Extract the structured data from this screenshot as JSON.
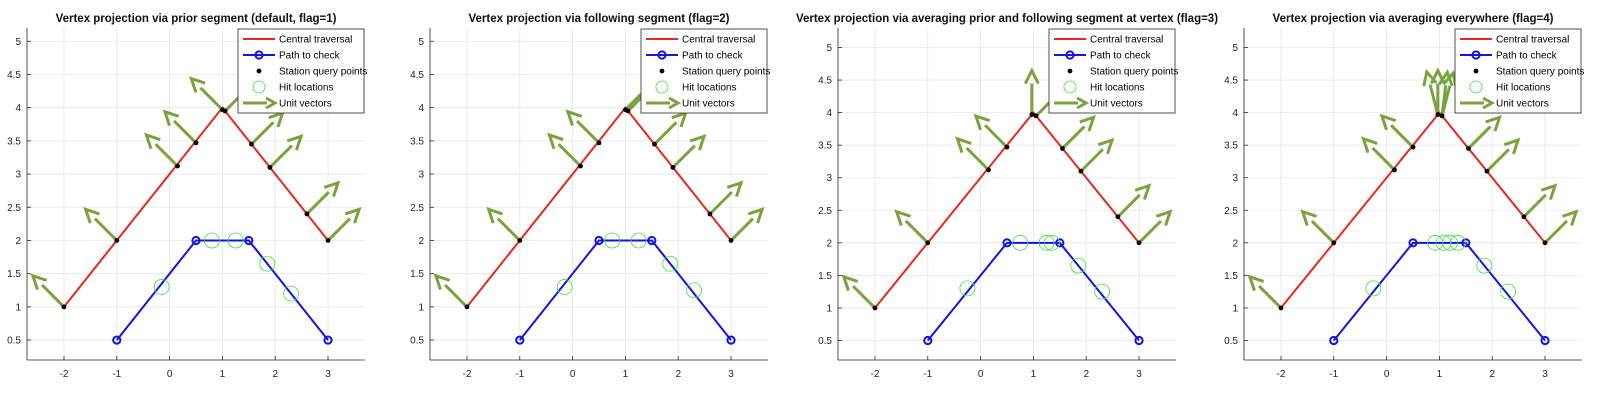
{
  "colors": {
    "central": "#e8281e",
    "path": "#1414dc",
    "vectors": "#7aa33f",
    "hits": "#3fe03f",
    "points": "#000000",
    "grid": "#e6e6e6",
    "axis": "#262626"
  },
  "legend": {
    "placement": "top-right",
    "items": [
      {
        "label": "Central traversal",
        "marker": "red-line"
      },
      {
        "label": "Path to check",
        "marker": "blue-line-circle"
      },
      {
        "label": "Station query points",
        "marker": "black-dot"
      },
      {
        "label": "Hit locations",
        "marker": "green-circle"
      },
      {
        "label": "Unit vectors",
        "marker": "green-arrow"
      }
    ]
  },
  "chart_data": [
    {
      "type": "line",
      "title": "Vertex projection via prior segment (default, flag=1)",
      "xlim": [
        -2.7,
        3.7
      ],
      "ylim": [
        0.2,
        5.2
      ],
      "xticks": [
        -2,
        -1,
        0,
        1,
        2,
        3
      ],
      "yticks": [
        0.5,
        1,
        1.5,
        2,
        2.5,
        3,
        3.5,
        4,
        4.5,
        5
      ],
      "grid": true,
      "series": [
        {
          "name": "Central traversal",
          "x": [
            -2,
            1,
            3
          ],
          "y": [
            1,
            4,
            2
          ]
        },
        {
          "name": "Path to check",
          "x": [
            -1,
            0.5,
            1.5,
            3
          ],
          "y": [
            0.5,
            2,
            2,
            0.5
          ]
        }
      ],
      "stations": {
        "x": [
          -2,
          -1.0,
          0.15,
          0.5,
          1.0,
          1.05,
          1.55,
          1.9,
          2.6,
          3
        ],
        "y": [
          1,
          2.0,
          3.12,
          3.47,
          3.97,
          3.95,
          3.45,
          3.1,
          2.4,
          2
        ]
      },
      "vectors": {
        "x": [
          -2,
          -1.0,
          0.15,
          0.5,
          1.0,
          1.05,
          1.55,
          1.9,
          2.6,
          3
        ],
        "y": [
          1,
          2.0,
          3.12,
          3.47,
          3.97,
          3.95,
          3.45,
          3.1,
          2.4,
          2
        ],
        "u": [
          -0.707,
          -0.707,
          -0.707,
          -0.707,
          -0.707,
          0.707,
          0.707,
          0.707,
          0.707,
          0.707
        ],
        "v": [
          0.707,
          0.707,
          0.707,
          0.707,
          0.707,
          0.707,
          0.707,
          0.707,
          0.707,
          0.707
        ]
      },
      "hits": {
        "x": [
          -0.15,
          0.8,
          1.25,
          1.85,
          2.3
        ],
        "y": [
          1.3,
          2.0,
          2.0,
          1.65,
          1.2
        ]
      }
    },
    {
      "type": "line",
      "title": "Vertex projection via following segment (flag=2)",
      "xlim": [
        -2.7,
        3.7
      ],
      "ylim": [
        0.2,
        5.2
      ],
      "xticks": [
        -2,
        -1,
        0,
        1,
        2,
        3
      ],
      "yticks": [
        0.5,
        1,
        1.5,
        2,
        2.5,
        3,
        3.5,
        4,
        4.5,
        5
      ],
      "grid": true,
      "series": [
        {
          "name": "Central traversal",
          "x": [
            -2,
            1,
            3
          ],
          "y": [
            1,
            4,
            2
          ]
        },
        {
          "name": "Path to check",
          "x": [
            -1,
            0.5,
            1.5,
            3
          ],
          "y": [
            0.5,
            2,
            2,
            0.5
          ]
        }
      ],
      "stations": {
        "x": [
          -2,
          -1.0,
          0.15,
          0.5,
          1.0,
          1.05,
          1.55,
          1.9,
          2.6,
          3
        ],
        "y": [
          1,
          2.0,
          3.12,
          3.47,
          3.97,
          3.95,
          3.45,
          3.1,
          2.4,
          2
        ]
      },
      "vectors": {
        "x": [
          -2,
          -1.0,
          0.15,
          0.5,
          1.0,
          1.05,
          1.55,
          1.9,
          2.6,
          3
        ],
        "y": [
          1,
          2.0,
          3.12,
          3.47,
          3.97,
          3.95,
          3.45,
          3.1,
          2.4,
          2
        ],
        "u": [
          -0.707,
          -0.707,
          -0.707,
          -0.707,
          0.707,
          0.707,
          0.707,
          0.707,
          0.707,
          0.707
        ],
        "v": [
          0.707,
          0.707,
          0.707,
          0.707,
          0.707,
          0.707,
          0.707,
          0.707,
          0.707,
          0.707
        ]
      },
      "hits": {
        "x": [
          -0.15,
          0.75,
          1.25,
          1.85,
          2.3
        ],
        "y": [
          1.3,
          2.0,
          2.0,
          1.65,
          1.25
        ]
      }
    },
    {
      "type": "line",
      "title": "Vertex projection via averaging prior and following segment at vertex (flag=3)",
      "xlim": [
        -2.7,
        3.7
      ],
      "ylim": [
        0.2,
        5.3
      ],
      "xticks": [
        -2,
        -1,
        0,
        1,
        2,
        3
      ],
      "yticks": [
        0.5,
        1,
        1.5,
        2,
        2.5,
        3,
        3.5,
        4,
        4.5,
        5
      ],
      "grid": true,
      "series": [
        {
          "name": "Central traversal",
          "x": [
            -2,
            1,
            3
          ],
          "y": [
            1,
            4,
            2
          ]
        },
        {
          "name": "Path to check",
          "x": [
            -1,
            0.5,
            1.5,
            3
          ],
          "y": [
            0.5,
            2,
            2,
            0.5
          ]
        }
      ],
      "stations": {
        "x": [
          -2,
          -1.0,
          0.15,
          0.5,
          0.97,
          1.05,
          1.55,
          1.9,
          2.6,
          3
        ],
        "y": [
          1,
          2.0,
          3.12,
          3.47,
          3.97,
          3.95,
          3.45,
          3.1,
          2.4,
          2
        ]
      },
      "vectors": {
        "x": [
          -2,
          -1.0,
          0.15,
          0.5,
          0.97,
          1.05,
          1.55,
          1.9,
          2.6,
          3
        ],
        "y": [
          1,
          2.0,
          3.12,
          3.47,
          3.97,
          3.95,
          3.45,
          3.1,
          2.4,
          2
        ],
        "u": [
          -0.707,
          -0.707,
          -0.707,
          -0.707,
          0.0,
          0.707,
          0.707,
          0.707,
          0.707,
          0.707
        ],
        "v": [
          0.707,
          0.707,
          0.707,
          0.707,
          1.0,
          0.707,
          0.707,
          0.707,
          0.707,
          0.707
        ]
      },
      "hits": {
        "x": [
          -0.25,
          0.75,
          1.25,
          1.35,
          1.85,
          2.3
        ],
        "y": [
          1.3,
          2.0,
          2.0,
          2.0,
          1.65,
          1.25
        ]
      }
    },
    {
      "type": "line",
      "title": "Vertex projection via averaging everywhere (flag=4)",
      "xlim": [
        -2.7,
        3.7
      ],
      "ylim": [
        0.2,
        5.3
      ],
      "xticks": [
        -2,
        -1,
        0,
        1,
        2,
        3
      ],
      "yticks": [
        0.5,
        1,
        1.5,
        2,
        2.5,
        3,
        3.5,
        4,
        4.5,
        5
      ],
      "grid": true,
      "series": [
        {
          "name": "Central traversal",
          "x": [
            -2,
            1,
            3
          ],
          "y": [
            1,
            4,
            2
          ]
        },
        {
          "name": "Path to check",
          "x": [
            -1,
            0.5,
            1.5,
            3
          ],
          "y": [
            0.5,
            2,
            2,
            0.5
          ]
        }
      ],
      "stations": {
        "x": [
          -2,
          -1.0,
          0.15,
          0.5,
          0.97,
          1.05,
          1.55,
          1.9,
          2.6,
          3
        ],
        "y": [
          1,
          2.0,
          3.12,
          3.47,
          3.97,
          3.95,
          3.45,
          3.1,
          2.4,
          2
        ]
      },
      "vectors": {
        "x": [
          -2,
          -1.0,
          0.15,
          0.5,
          0.97,
          0.97,
          1.05,
          1.05,
          1.55,
          1.9,
          2.6,
          3
        ],
        "y": [
          1,
          2.0,
          3.12,
          3.47,
          3.97,
          3.97,
          3.95,
          3.95,
          3.45,
          3.1,
          2.4,
          2
        ],
        "u": [
          -0.707,
          -0.707,
          -0.707,
          -0.707,
          -0.25,
          0.0,
          0.12,
          0.25,
          0.707,
          0.707,
          0.707,
          0.707
        ],
        "v": [
          0.707,
          0.707,
          0.707,
          0.707,
          0.968,
          1.0,
          0.99,
          0.968,
          0.707,
          0.707,
          0.707,
          0.707
        ]
      },
      "hits": {
        "x": [
          -0.25,
          0.92,
          1.08,
          1.2,
          1.35,
          1.85,
          2.3
        ],
        "y": [
          1.3,
          2.0,
          2.0,
          2.0,
          2.0,
          1.65,
          1.25
        ]
      }
    }
  ]
}
